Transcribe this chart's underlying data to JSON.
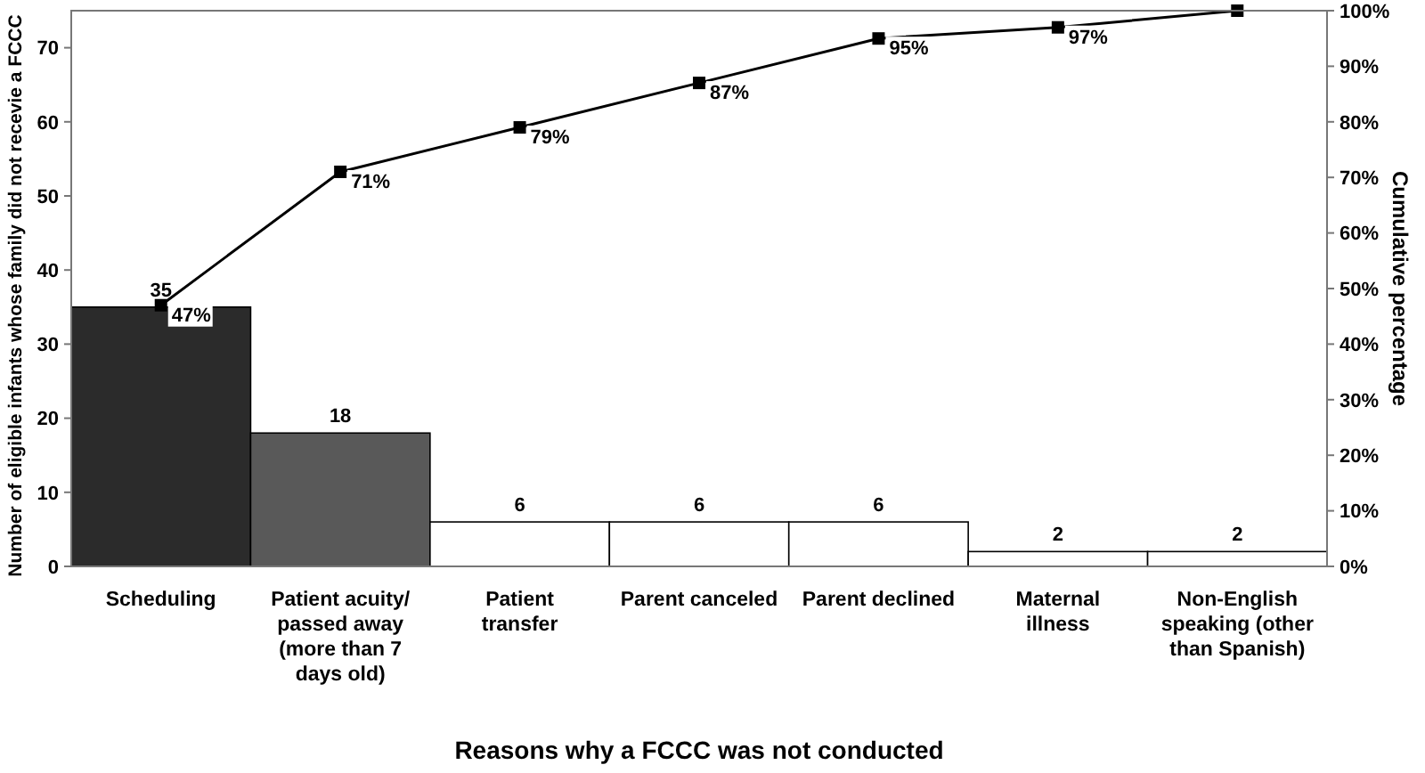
{
  "chart_data": {
    "type": "bar",
    "xlabel": "Reasons why a FCCC was not conducted",
    "ylabel": "Number of eligible infants whose family did not recevie a FCCC",
    "y2label": "Cumulative percentage",
    "categories": [
      "Scheduling",
      "Patient acuity/ passed away (more than 7 days old)",
      "Patient transfer",
      "Parent canceled",
      "Parent declined",
      "Maternal illness",
      "Non-English speaking (other than Spanish)"
    ],
    "series": [
      {
        "colors": [
          "#2b2b2b",
          "#595959",
          "#ffffff",
          "#ffffff",
          "#ffffff",
          "#ffffff",
          "#ffffff"
        ],
        "values": [
          35,
          18,
          6,
          6,
          6,
          2,
          2
        ],
        "value_labels": [
          "35",
          "18",
          "6",
          "6",
          "6",
          "2",
          "2"
        ]
      },
      {
        "type": "line",
        "axis": "y2",
        "color": "#000000",
        "values": [
          47,
          71,
          79,
          87,
          95,
          97,
          100
        ],
        "value_labels": [
          "47%",
          "71%",
          "79%",
          "87%",
          "95%",
          "97%",
          null
        ]
      }
    ],
    "ylim": [
      0,
      75
    ],
    "yticks": [
      0,
      10,
      20,
      30,
      40,
      50,
      60,
      70
    ],
    "y2lim": [
      0,
      100
    ],
    "y2ticks": [
      {
        "value": 0,
        "label": "0%"
      },
      {
        "value": 10,
        "label": "10%"
      },
      {
        "value": 20,
        "label": "20%"
      },
      {
        "value": 30,
        "label": "30%"
      },
      {
        "value": 40,
        "label": "40%"
      },
      {
        "value": 50,
        "label": "50%"
      },
      {
        "value": 60,
        "label": "60%"
      },
      {
        "value": 70,
        "label": "70%"
      },
      {
        "value": 80,
        "label": "80%"
      },
      {
        "value": 90,
        "label": "90%"
      },
      {
        "value": 100,
        "label": "100%"
      }
    ],
    "grid": false,
    "marker": "square",
    "line_style": "solid"
  }
}
